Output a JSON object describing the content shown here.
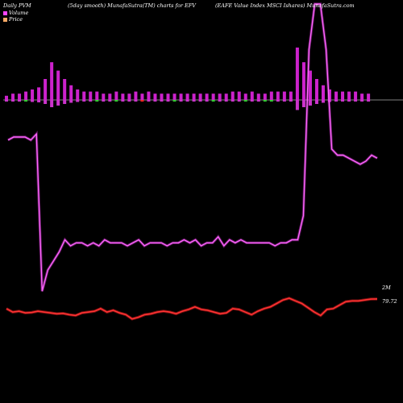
{
  "header": {
    "left": "Daily PVM",
    "middle": "(5day smooth) MunafaSutra(TM) charts for EFV",
    "right": "(EAFE Value   Index MSCI Ishares) MunafaSutra.com"
  },
  "legend": [
    {
      "label": "Volume",
      "color": "#ff44ff"
    },
    {
      "label": "Price",
      "color": "#ffaa66"
    }
  ],
  "chart_data": {
    "type": "line",
    "series": [
      {
        "name": "Volume",
        "color": "#cc33cc",
        "end_label": "2M",
        "values": [
          55,
          56,
          56,
          56,
          55,
          57,
          5,
          12,
          15,
          18,
          22,
          20,
          21,
          21,
          20,
          21,
          20,
          22,
          21,
          21,
          21,
          20,
          21,
          22,
          20,
          21,
          21,
          21,
          20,
          21,
          21,
          22,
          21,
          22,
          20,
          21,
          21,
          23,
          20,
          22,
          21,
          22,
          21,
          21,
          21,
          21,
          21,
          20,
          21,
          21,
          22,
          22,
          30,
          85,
          100,
          100,
          85,
          52,
          50,
          50,
          49,
          48,
          47,
          48,
          50,
          49
        ]
      },
      {
        "name": "Price",
        "color": "#ff2222",
        "end_label": "79.72",
        "values": [
          78.6,
          78.2,
          78.3,
          78.1,
          78.15,
          78.3,
          78.2,
          78.1,
          78.0,
          78.05,
          77.9,
          77.8,
          78.1,
          78.2,
          78.3,
          78.6,
          78.2,
          78.4,
          78.1,
          77.9,
          77.4,
          77.6,
          77.9,
          78.0,
          78.2,
          78.3,
          78.2,
          78.0,
          78.3,
          78.5,
          78.8,
          78.5,
          78.4,
          78.2,
          78.0,
          78.1,
          78.6,
          78.5,
          78.2,
          77.9,
          78.3,
          78.6,
          78.8,
          79.2,
          79.6,
          79.8,
          79.5,
          79.2,
          78.7,
          78.2,
          77.8,
          78.5,
          78.6,
          79.0,
          79.4,
          79.5,
          79.5,
          79.6,
          79.7,
          79.72
        ]
      }
    ],
    "bars": [
      {
        "v": 2,
        "c": "#cc33cc"
      },
      {
        "v": 3,
        "c": "#cc33cc"
      },
      {
        "v": 3,
        "c": "#cc33cc"
      },
      {
        "v": 4,
        "c": "#33cc33"
      },
      {
        "v": 5,
        "c": "#cc33cc"
      },
      {
        "v": 6,
        "c": "#cc33cc"
      },
      {
        "v": 10,
        "c": "#cc33cc"
      },
      {
        "v": 18,
        "c": "#cc33cc"
      },
      {
        "v": 14,
        "c": "#cc33cc"
      },
      {
        "v": 10,
        "c": "#cc33cc"
      },
      {
        "v": 7,
        "c": "#cc33cc"
      },
      {
        "v": 5,
        "c": "#cc33cc"
      },
      {
        "v": 4,
        "c": "#cc33cc"
      },
      {
        "v": 4,
        "c": "#cc33cc"
      },
      {
        "v": 4,
        "c": "#33cc33"
      },
      {
        "v": 3,
        "c": "#cc33cc"
      },
      {
        "v": 3,
        "c": "#cc33cc"
      },
      {
        "v": 4,
        "c": "#33cc33"
      },
      {
        "v": 3,
        "c": "#cc33cc"
      },
      {
        "v": 3,
        "c": "#cc33cc"
      },
      {
        "v": 4,
        "c": "#cc33cc"
      },
      {
        "v": 3,
        "c": "#ff2222"
      },
      {
        "v": 4,
        "c": "#cc33cc"
      },
      {
        "v": 3,
        "c": "#cc33cc"
      },
      {
        "v": 3,
        "c": "#cc33cc"
      },
      {
        "v": 3,
        "c": "#cc33cc"
      },
      {
        "v": 3,
        "c": "#33cc33"
      },
      {
        "v": 3,
        "c": "#cc33cc"
      },
      {
        "v": 3,
        "c": "#cc33cc"
      },
      {
        "v": 3,
        "c": "#cc33cc"
      },
      {
        "v": 3,
        "c": "#cc33cc"
      },
      {
        "v": 3,
        "c": "#cc33cc"
      },
      {
        "v": 3,
        "c": "#33cc33"
      },
      {
        "v": 3,
        "c": "#cc33cc"
      },
      {
        "v": 3,
        "c": "#cc33cc"
      },
      {
        "v": 4,
        "c": "#cc33cc"
      },
      {
        "v": 4,
        "c": "#cc33cc"
      },
      {
        "v": 3,
        "c": "#33cc33"
      },
      {
        "v": 4,
        "c": "#cc33cc"
      },
      {
        "v": 3,
        "c": "#cc33cc"
      },
      {
        "v": 3,
        "c": "#33cc33"
      },
      {
        "v": 4,
        "c": "#33cc33"
      },
      {
        "v": 4,
        "c": "#cc33cc"
      },
      {
        "v": 4,
        "c": "#cc33cc"
      },
      {
        "v": 4,
        "c": "#cc33cc"
      },
      {
        "v": 25,
        "c": "#cc33cc"
      },
      {
        "v": 18,
        "c": "#cc33cc"
      },
      {
        "v": 14,
        "c": "#cc33cc"
      },
      {
        "v": 10,
        "c": "#cc33cc"
      },
      {
        "v": 7,
        "c": "#cc33cc"
      },
      {
        "v": 5,
        "c": "#cc33cc"
      },
      {
        "v": 4,
        "c": "#cc33cc"
      },
      {
        "v": 4,
        "c": "#cc33cc"
      },
      {
        "v": 4,
        "c": "#cc33cc"
      },
      {
        "v": 4,
        "c": "#cc33cc"
      },
      {
        "v": 3,
        "c": "#cc33cc"
      },
      {
        "v": 3,
        "c": "#cc33cc"
      }
    ]
  }
}
